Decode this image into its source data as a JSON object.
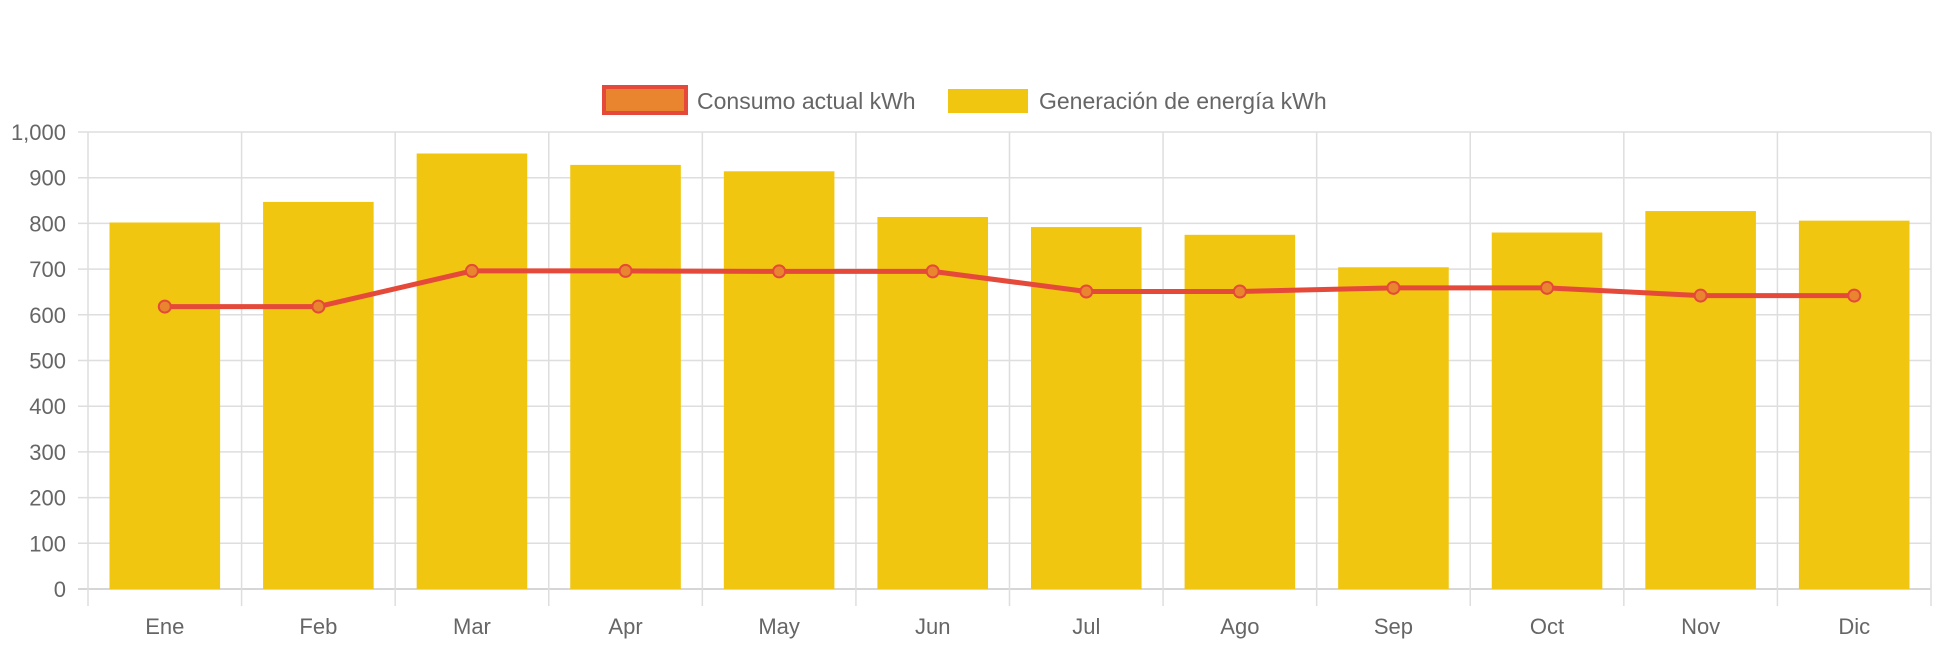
{
  "colors": {
    "bar_fill": "#F0C611",
    "line_stroke": "#E5493A",
    "point_fill": "#E8852E",
    "grid": "#dedede",
    "text": "#666666"
  },
  "legend": {
    "items": [
      {
        "label": "Consumo actual kWh",
        "swatch": "line"
      },
      {
        "label": "Generación de energía kWh",
        "swatch": "bar"
      }
    ]
  },
  "chart_data": {
    "type": "bar",
    "categories": [
      "Ene",
      "Feb",
      "Mar",
      "Apr",
      "May",
      "Jun",
      "Jul",
      "Ago",
      "Sep",
      "Oct",
      "Nov",
      "Dic"
    ],
    "series": [
      {
        "name": "Consumo actual kWh",
        "type": "line",
        "values": [
          618,
          618,
          696,
          696,
          695,
          695,
          651,
          651,
          659,
          659,
          642,
          642
        ]
      },
      {
        "name": "Generación de energía kWh",
        "type": "bar",
        "values": [
          802,
          847,
          953,
          928,
          914,
          814,
          792,
          775,
          704,
          780,
          827,
          806
        ]
      }
    ],
    "ylim": [
      0,
      1000
    ],
    "yticks": [
      "0",
      "100",
      "200",
      "300",
      "400",
      "500",
      "600",
      "700",
      "800",
      "900",
      "1,000"
    ],
    "grid": true,
    "legend_position": "top-center"
  }
}
